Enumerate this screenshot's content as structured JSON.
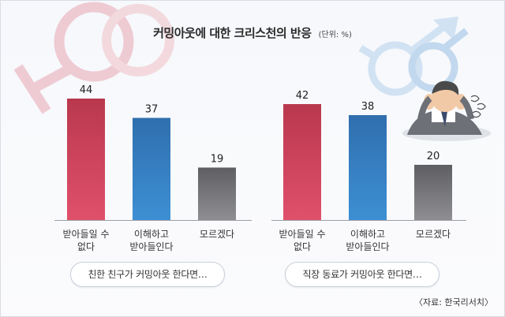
{
  "title": "커밍아웃에 대한 크리스천의 반응",
  "unit": "(단위: %)",
  "source": "〈자료: 한국리서치〉",
  "chart_data": [
    {
      "type": "bar",
      "group_label": "친한 친구가 커밍아웃 한다면…",
      "categories": [
        [
          "받아들일 수",
          "없다"
        ],
        [
          "이해하고",
          "받아들인다"
        ],
        [
          "모르겠다"
        ]
      ],
      "values": [
        44,
        37,
        19
      ],
      "ylim": [
        0,
        50
      ]
    },
    {
      "type": "bar",
      "group_label": "직장 동료가 커밍아웃 한다면…",
      "categories": [
        [
          "받아들일 수",
          "없다"
        ],
        [
          "이해하고",
          "받아들인다"
        ],
        [
          "모르겠다"
        ]
      ],
      "values": [
        42,
        38,
        20
      ],
      "ylim": [
        0,
        50
      ]
    }
  ],
  "colors": {
    "reject": [
      "#e0506a",
      "#b9384d"
    ],
    "accept": [
      "#3d8fd4",
      "#2f6fae"
    ],
    "unknown": [
      "#8f8f93",
      "#5f5f63"
    ],
    "female_symbol": "#e8a6b3",
    "male_symbol": "#b9d4ee"
  },
  "icons": [
    "female-symbol-icon",
    "male-symbol-icon",
    "worried-man-illustration"
  ]
}
